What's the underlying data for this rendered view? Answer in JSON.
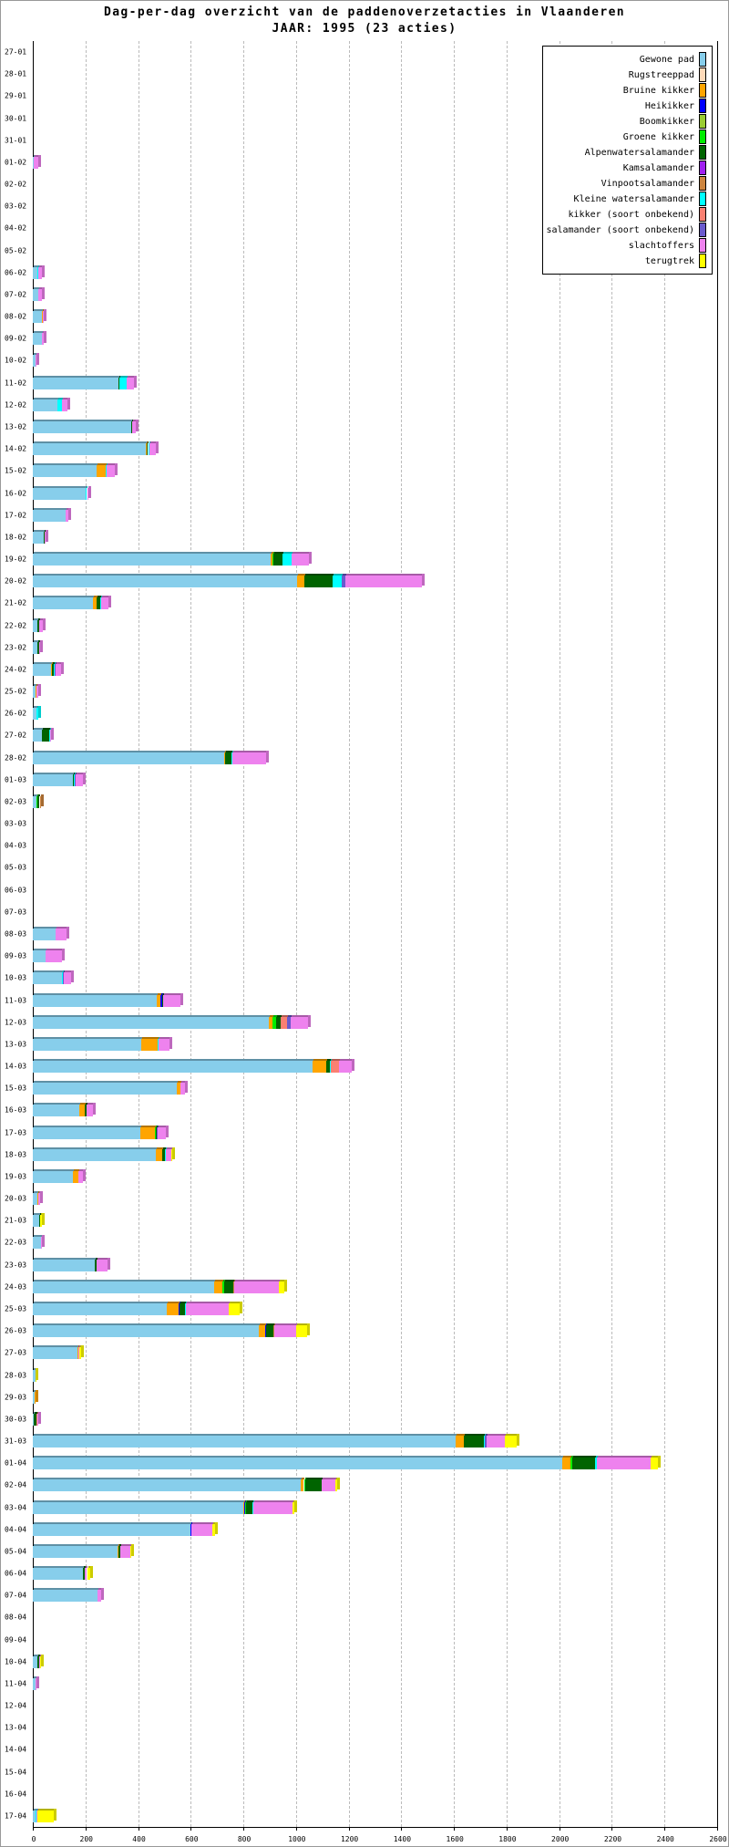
{
  "chart_data": {
    "type": "bar",
    "orientation": "horizontal-stacked",
    "title": "Dag-per-dag overzicht van de paddenoverzetacties in Vlaanderen",
    "subtitle": "JAAR: 1995 (23 acties)",
    "xlabel": "",
    "ylabel": "",
    "xlim": [
      0,
      2600
    ],
    "xticks": [
      "0",
      "200",
      "400",
      "600",
      "800",
      "1000",
      "1200",
      "1400",
      "1600",
      "1800",
      "2000",
      "2200",
      "2400",
      "2600"
    ],
    "grid": true,
    "legend_position": "top-right",
    "series": [
      {
        "key": "gp",
        "name": "Gewone pad",
        "color": "#87ceeb"
      },
      {
        "key": "rs",
        "name": "Rugstreeppad",
        "color": "#ffdab9"
      },
      {
        "key": "bk",
        "name": "Bruine kikker",
        "color": "#ffa500"
      },
      {
        "key": "hk",
        "name": "Heikikker",
        "color": "#0000ff"
      },
      {
        "key": "bo",
        "name": "Boomkikker",
        "color": "#9acd32"
      },
      {
        "key": "gk",
        "name": "Groene kikker",
        "color": "#00ee00"
      },
      {
        "key": "aw",
        "name": "Alpenwatersalamander",
        "color": "#006400"
      },
      {
        "key": "ks",
        "name": "Kamsalamander",
        "color": "#a020f0"
      },
      {
        "key": "vp",
        "name": "Vinpootsalamander",
        "color": "#cd853f"
      },
      {
        "key": "kw",
        "name": "Kleine watersalamander",
        "color": "#00ffff"
      },
      {
        "key": "ko",
        "name": "kikker (soort onbekend)",
        "color": "#fa8072"
      },
      {
        "key": "so",
        "name": "salamander (soort onbekend)",
        "color": "#6a5acd"
      },
      {
        "key": "sl",
        "name": "slachtoffers",
        "color": "#ee82ee"
      },
      {
        "key": "tt",
        "name": "terugtrek",
        "color": "#ffff00"
      }
    ],
    "rows": [
      {
        "date": "27-01",
        "values": {}
      },
      {
        "date": "28-01",
        "values": {}
      },
      {
        "date": "29-01",
        "values": {}
      },
      {
        "date": "30-01",
        "values": {}
      },
      {
        "date": "31-01",
        "values": {}
      },
      {
        "date": "01-02",
        "values": {
          "gp": 3,
          "sl": 17
        }
      },
      {
        "date": "02-02",
        "values": {}
      },
      {
        "date": "03-02",
        "values": {}
      },
      {
        "date": "04-02",
        "values": {}
      },
      {
        "date": "05-02",
        "values": {}
      },
      {
        "date": "06-02",
        "values": {
          "gp": 18,
          "kw": 2,
          "sl": 15
        }
      },
      {
        "date": "07-02",
        "values": {
          "gp": 20,
          "bk": 1,
          "sl": 13
        }
      },
      {
        "date": "08-02",
        "values": {
          "gp": 35,
          "bk": 2,
          "sl": 5
        }
      },
      {
        "date": "09-02",
        "values": {
          "gp": 35,
          "sl": 7
        }
      },
      {
        "date": "10-02",
        "values": {
          "gp": 12,
          "sl": 2
        }
      },
      {
        "date": "11-02",
        "values": {
          "gp": 325,
          "bk": 2,
          "aw": 3,
          "kw": 25,
          "sl": 29
        }
      },
      {
        "date": "12-02",
        "values": {
          "gp": 92,
          "kw": 18,
          "sl": 21
        }
      },
      {
        "date": "13-02",
        "values": {
          "gp": 373,
          "aw": 3,
          "ks": 2,
          "sl": 12
        }
      },
      {
        "date": "14-02",
        "values": {
          "gp": 431,
          "bk": 3,
          "aw": 4,
          "kw": 4,
          "sl": 25
        }
      },
      {
        "date": "15-02",
        "values": {
          "gp": 242,
          "bk": 35,
          "kw": 4,
          "sl": 30
        }
      },
      {
        "date": "16-02",
        "values": {
          "gp": 202,
          "kw": 4,
          "sl": 5
        }
      },
      {
        "date": "17-02",
        "values": {
          "gp": 124,
          "sl": 10
        }
      },
      {
        "date": "18-02",
        "values": {
          "gp": 41,
          "aw": 3,
          "sl": 5
        }
      },
      {
        "date": "19-02",
        "values": {
          "gp": 905,
          "bk": 7,
          "gk": 2,
          "aw": 36,
          "kw": 32,
          "sl": 66
        }
      },
      {
        "date": "20-02",
        "values": {
          "gp": 1005,
          "bk": 28,
          "aw": 107,
          "kw": 35,
          "so": 14,
          "sl": 291
        }
      },
      {
        "date": "21-02",
        "values": {
          "gp": 230,
          "bk": 12,
          "aw": 14,
          "kw": 2,
          "sl": 30
        }
      },
      {
        "date": "22-02",
        "values": {
          "gp": 16,
          "bk": 3,
          "aw": 5,
          "sl": 14
        }
      },
      {
        "date": "23-02",
        "values": {
          "gp": 18,
          "aw": 7,
          "sl": 2
        }
      },
      {
        "date": "24-02",
        "values": {
          "gp": 69,
          "bk": 3,
          "aw": 7,
          "kw": 3,
          "so": 4,
          "sl": 21
        }
      },
      {
        "date": "25-02",
        "values": {
          "gp": 12,
          "bk": 2,
          "sl": 8
        }
      },
      {
        "date": "26-02",
        "values": {
          "gp": 14,
          "kw": 8
        }
      },
      {
        "date": "27-02",
        "values": {
          "gp": 35,
          "bk": 1,
          "aw": 27,
          "kw": 2,
          "sl": 3
        }
      },
      {
        "date": "28-02",
        "values": {
          "gp": 728,
          "bk": 3,
          "aw": 24,
          "kw": 4,
          "sl": 127
        }
      },
      {
        "date": "01-03",
        "values": {
          "gp": 154,
          "aw": 3,
          "kw": 3,
          "so": 2,
          "sl": 27
        }
      },
      {
        "date": "02-03",
        "values": {
          "gp": 14,
          "gk": 2,
          "aw": 10,
          "vp": 6
        }
      },
      {
        "date": "03-03",
        "values": {}
      },
      {
        "date": "04-03",
        "values": {}
      },
      {
        "date": "05-03",
        "values": {}
      },
      {
        "date": "06-03",
        "values": {}
      },
      {
        "date": "07-03",
        "values": {}
      },
      {
        "date": "08-03",
        "values": {
          "gp": 85,
          "sl": 43
        }
      },
      {
        "date": "09-03",
        "values": {
          "gp": 47,
          "bk": 1,
          "sl": 62
        }
      },
      {
        "date": "10-03",
        "values": {
          "gp": 110,
          "bk": 2,
          "kw": 3,
          "so": 2,
          "sl": 28
        }
      },
      {
        "date": "11-03",
        "values": {
          "gp": 472,
          "bk": 14,
          "hk": 5,
          "aw": 3,
          "so": 2,
          "sl": 64
        }
      },
      {
        "date": "12-03",
        "values": {
          "gp": 897,
          "bk": 14,
          "gk": 14,
          "aw": 16,
          "vp": 2,
          "ko": 22,
          "so": 14,
          "sl": 67
        }
      },
      {
        "date": "13-03",
        "values": {
          "gp": 413,
          "bk": 60,
          "aw": 3,
          "kw": 3,
          "sl": 40
        }
      },
      {
        "date": "14-03",
        "values": {
          "gp": 1064,
          "bk": 51,
          "aw": 14,
          "kw": 2,
          "ko": 33,
          "sl": 48
        }
      },
      {
        "date": "15-03",
        "values": {
          "gp": 548,
          "bk": 12,
          "sl": 17
        }
      },
      {
        "date": "16-03",
        "values": {
          "gp": 175,
          "bk": 21,
          "gk": 3,
          "aw": 5,
          "sl": 25
        }
      },
      {
        "date": "17-03",
        "values": {
          "gp": 407,
          "bk": 56,
          "gk": 4,
          "aw": 3,
          "so": 3,
          "sl": 32
        }
      },
      {
        "date": "18-03",
        "values": {
          "gp": 469,
          "bk": 21,
          "aw": 12,
          "kw": 3,
          "sl": 20,
          "tt": 4
        }
      },
      {
        "date": "19-03",
        "values": {
          "gp": 154,
          "bk": 18,
          "aw": 1,
          "sl": 17
        }
      },
      {
        "date": "20-03",
        "values": {
          "gp": 18,
          "bk": 2,
          "sl": 7
        }
      },
      {
        "date": "21-03",
        "values": {
          "gp": 25,
          "aw": 4,
          "tt": 5
        }
      },
      {
        "date": "22-03",
        "values": {
          "gp": 30,
          "sl": 3
        }
      },
      {
        "date": "23-03",
        "values": {
          "gp": 234,
          "aw": 10,
          "sl": 39
        }
      },
      {
        "date": "24-03",
        "values": {
          "gp": 690,
          "bk": 31,
          "gk": 7,
          "aw": 32,
          "vp": 6,
          "sl": 169,
          "tt": 21
        }
      },
      {
        "date": "25-03",
        "values": {
          "gp": 510,
          "bk": 45,
          "hk": 2,
          "aw": 22,
          "kw": 1,
          "sl": 164,
          "tt": 41
        }
      },
      {
        "date": "26-03",
        "values": {
          "gp": 859,
          "bk": 24,
          "hk": 2,
          "aw": 29,
          "vp": 2,
          "sl": 86,
          "tt": 39
        }
      },
      {
        "date": "27-03",
        "values": {
          "gp": 168,
          "bk": 5,
          "sl": 4,
          "tt": 5
        }
      },
      {
        "date": "28-03",
        "values": {
          "gp": 9,
          "tt": 2
        }
      },
      {
        "date": "29-03",
        "values": {
          "gp": 8,
          "bk": 2
        }
      },
      {
        "date": "30-03",
        "values": {
          "gp": 2,
          "bk": 3,
          "aw": 9,
          "ko": 2,
          "sl": 5
        }
      },
      {
        "date": "31-03",
        "values": {
          "gp": 1607,
          "bk": 31,
          "aw": 76,
          "kw": 3,
          "so": 7,
          "sl": 69,
          "tt": 45
        }
      },
      {
        "date": "01-04",
        "values": {
          "gp": 2012,
          "bk": 32,
          "gk": 5,
          "aw": 86,
          "kw": 9,
          "sl": 202,
          "tt": 28
        }
      },
      {
        "date": "02-04",
        "values": {
          "gp": 1018,
          "bk": 12,
          "gk": 6,
          "aw": 60,
          "kw": 2,
          "sl": 53,
          "tt": 6
        }
      },
      {
        "date": "03-04",
        "values": {
          "gp": 801,
          "bk": 3,
          "hk": 4,
          "gk": 2,
          "aw": 25,
          "kw": 2,
          "sl": 150,
          "tt": 8
        }
      },
      {
        "date": "04-04",
        "values": {
          "gp": 598,
          "bk": 2,
          "hk": 4,
          "sl": 79,
          "tt": 9
        }
      },
      {
        "date": "05-04",
        "values": {
          "gp": 321,
          "bk": 6,
          "aw": 7,
          "sl": 35,
          "tt": 5
        }
      },
      {
        "date": "06-04",
        "values": {
          "gp": 189,
          "aw": 7,
          "sl": 10,
          "tt": 11
        }
      },
      {
        "date": "07-04",
        "values": {
          "gp": 245,
          "aw": 2,
          "sl": 11
        }
      },
      {
        "date": "08-04",
        "values": {}
      },
      {
        "date": "09-04",
        "values": {}
      },
      {
        "date": "10-04",
        "values": {
          "gp": 16,
          "bk": 2,
          "aw": 5,
          "sl": 3,
          "tt": 6
        }
      },
      {
        "date": "11-04",
        "values": {
          "gp": 9,
          "aw": 2,
          "sl": 4
        }
      },
      {
        "date": "12-04",
        "values": {}
      },
      {
        "date": "13-04",
        "values": {}
      },
      {
        "date": "14-04",
        "values": {}
      },
      {
        "date": "15-04",
        "values": {}
      },
      {
        "date": "16-04",
        "values": {}
      },
      {
        "date": "17-04",
        "values": {
          "gp": 10,
          "kw": 3,
          "ko": 2,
          "sl": 3,
          "tt": 60
        }
      }
    ]
  }
}
